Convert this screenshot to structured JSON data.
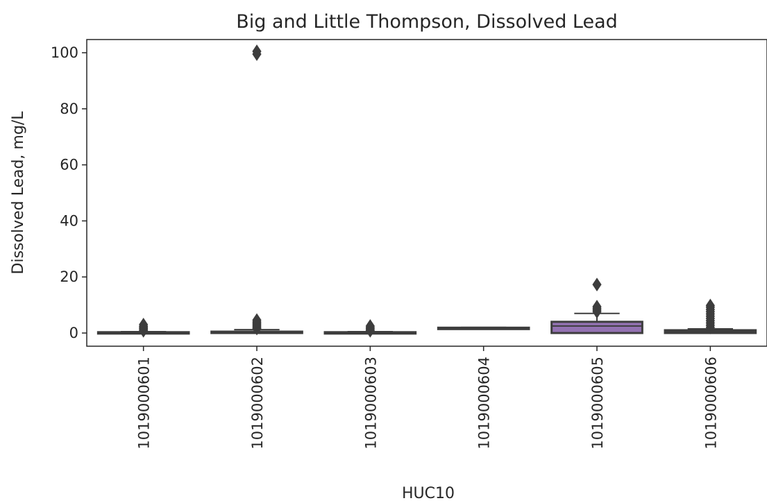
{
  "chart_data": {
    "type": "box",
    "title": "Big and Little Thompson, Dissolved Lead",
    "xlabel": "HUC10",
    "ylabel": "Dissolved Lead, mg/L",
    "ylim": [
      -4.7,
      104.5
    ],
    "yticks": [
      0,
      20,
      40,
      60,
      80,
      100
    ],
    "grid": false,
    "legend": "none",
    "categories": [
      "1019000601",
      "1019000602",
      "1019000603",
      "1019000604",
      "1019000605",
      "1019000606"
    ],
    "boxes": [
      {
        "category": "1019000601",
        "q1": 0.0,
        "median": 0.1,
        "q3": 0.3,
        "whisker_low": 0.0,
        "whisker_high": 0.5,
        "outliers": [
          0.8,
          1.2,
          1.6,
          2.0,
          2.4,
          3.0
        ],
        "color": "#3274a1"
      },
      {
        "category": "1019000602",
        "q1": 0.0,
        "median": 0.2,
        "q3": 0.5,
        "whisker_low": 0.0,
        "whisker_high": 1.2,
        "outliers": [
          1.6,
          2.0,
          2.5,
          3.0,
          3.5,
          4.0,
          4.6,
          99.5,
          100.5
        ],
        "color": "#e1812c"
      },
      {
        "category": "1019000603",
        "q1": 0.0,
        "median": 0.1,
        "q3": 0.3,
        "whisker_low": 0.0,
        "whisker_high": 0.5,
        "outliers": [
          0.8,
          1.2,
          1.6,
          2.0,
          2.5
        ],
        "color": "#3a923a"
      },
      {
        "category": "1019000604",
        "q1": 1.5,
        "median": 1.7,
        "q3": 1.9,
        "whisker_low": 1.4,
        "whisker_high": 2.0,
        "outliers": [],
        "color": "#c03d3e"
      },
      {
        "category": "1019000605",
        "q1": 0.0,
        "median": 2.5,
        "q3": 4.0,
        "whisker_low": 0.0,
        "whisker_high": 7.0,
        "outliers": [
          7.6,
          8.2,
          8.8,
          9.4,
          17.3
        ],
        "color": "#9372b2"
      },
      {
        "category": "1019000606",
        "q1": 0.0,
        "median": 0.5,
        "q3": 1.0,
        "whisker_low": 0.0,
        "whisker_high": 1.5,
        "outliers": [
          2.0,
          2.8,
          3.6,
          4.4,
          5.2,
          6.0,
          6.8,
          7.6,
          8.4,
          9.2,
          9.8
        ],
        "color": "#845b53"
      }
    ]
  }
}
